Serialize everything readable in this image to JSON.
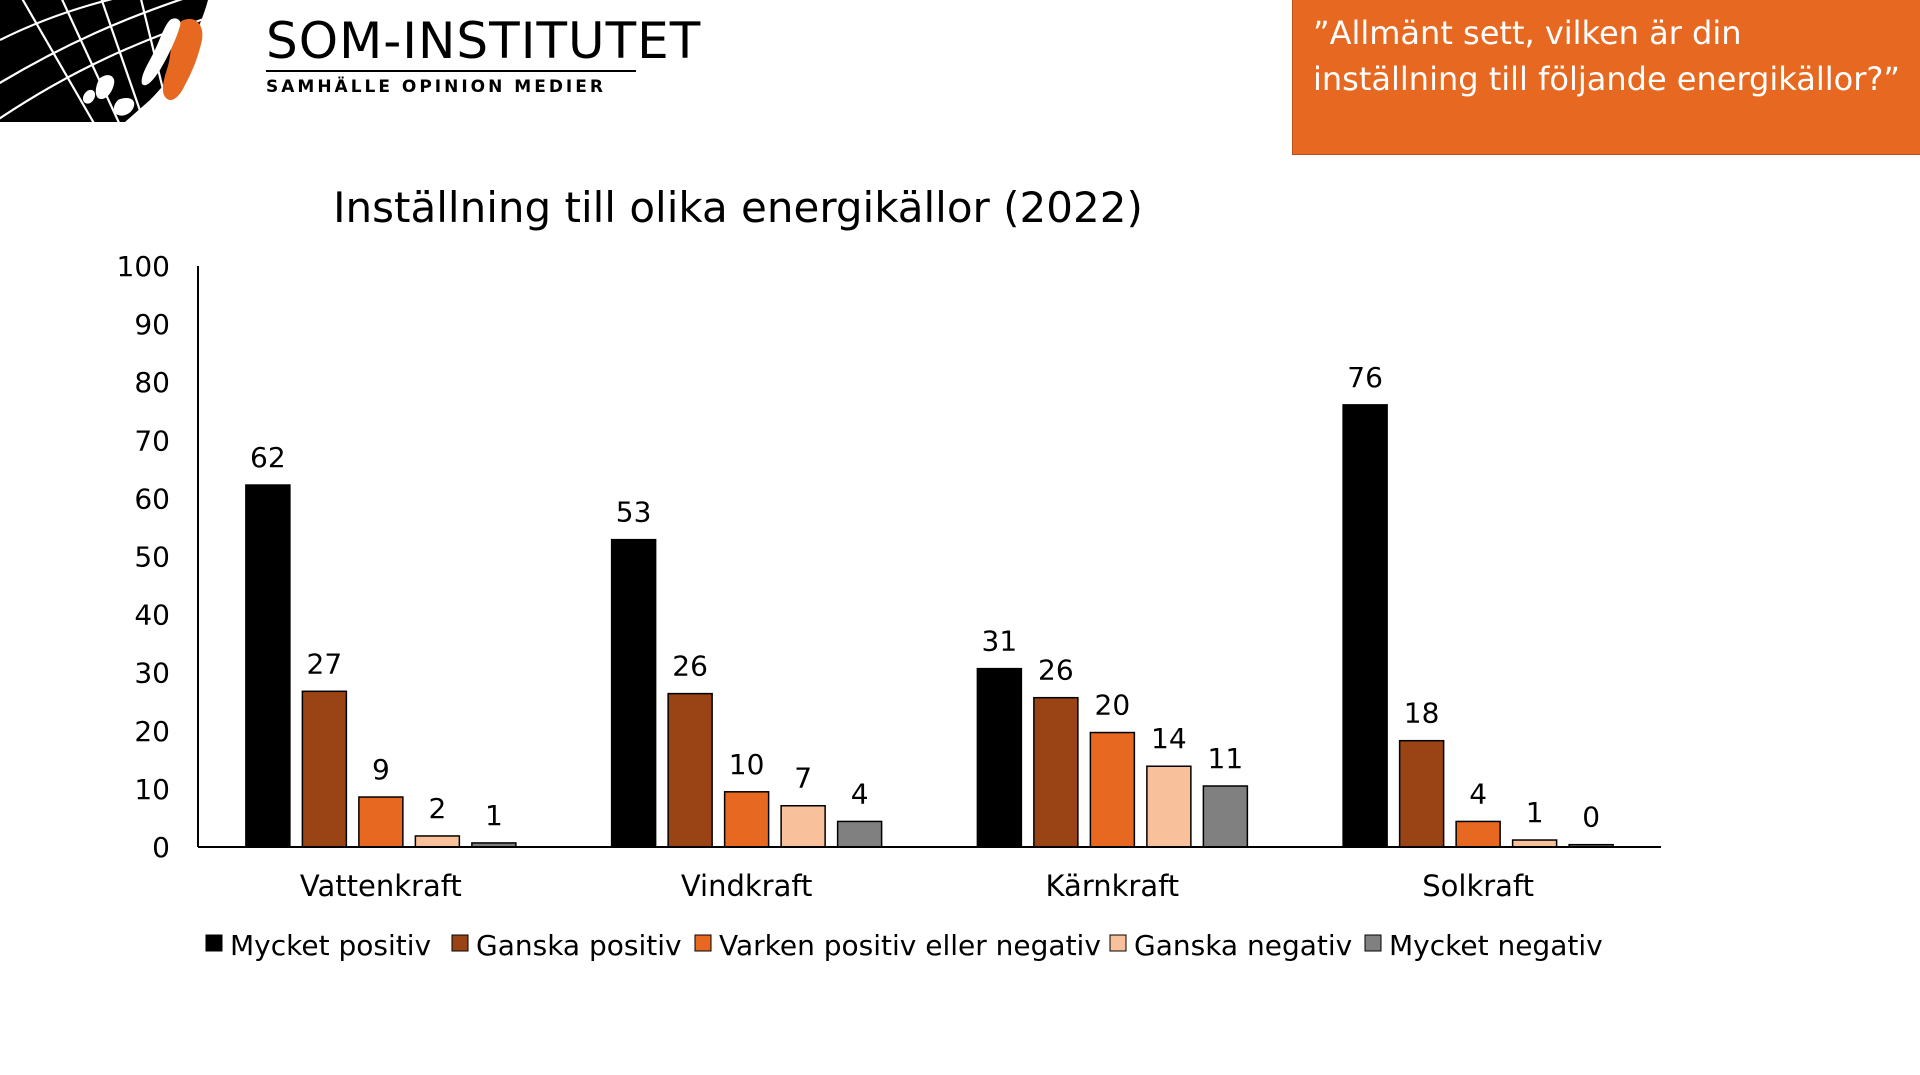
{
  "logo": {
    "name": "SOM-INSTITUTET",
    "tagline": "SAMHÄLLE OPINION MEDIER",
    "map_icon": "map-graticule-icon"
  },
  "question": {
    "text": "”Allmänt sett, vilken är din inställning till följande energikällor?”"
  },
  "colors": {
    "question_box": "#e76821",
    "series": [
      "#000000",
      "#9a4314",
      "#e76821",
      "#f8c09b",
      "#808080"
    ]
  },
  "chart_data": {
    "type": "bar",
    "title": "Inställning till olika energikällor (2022)",
    "categories": [
      "Vattenkraft",
      "Vindkraft",
      "Kärnkraft",
      "Solkraft"
    ],
    "series": [
      {
        "name": "Mycket positiv",
        "values": [
          62,
          53,
          31,
          76
        ]
      },
      {
        "name": "Ganska positiv",
        "values": [
          27,
          26,
          26,
          18
        ]
      },
      {
        "name": "Varken positiv eller negativ",
        "values": [
          9,
          10,
          20,
          4
        ]
      },
      {
        "name": "Ganska negativ",
        "values": [
          2,
          7,
          14,
          1
        ]
      },
      {
        "name": "Mycket negativ",
        "values": [
          1,
          4,
          11,
          0
        ]
      }
    ],
    "plot_values": [
      [
        62.3,
        52.9,
        30.7,
        76.1
      ],
      [
        26.8,
        26.4,
        25.7,
        18.3
      ],
      [
        8.6,
        9.5,
        19.7,
        4.4
      ],
      [
        1.9,
        7.1,
        13.9,
        1.2
      ],
      [
        0.7,
        4.4,
        10.5,
        0.4
      ]
    ],
    "ylim": [
      0,
      100
    ],
    "yticks": [
      "0",
      "10",
      "20",
      "30",
      "40",
      "50",
      "60",
      "70",
      "80",
      "90",
      "100"
    ],
    "grid": false,
    "legend_position": "bottom"
  }
}
